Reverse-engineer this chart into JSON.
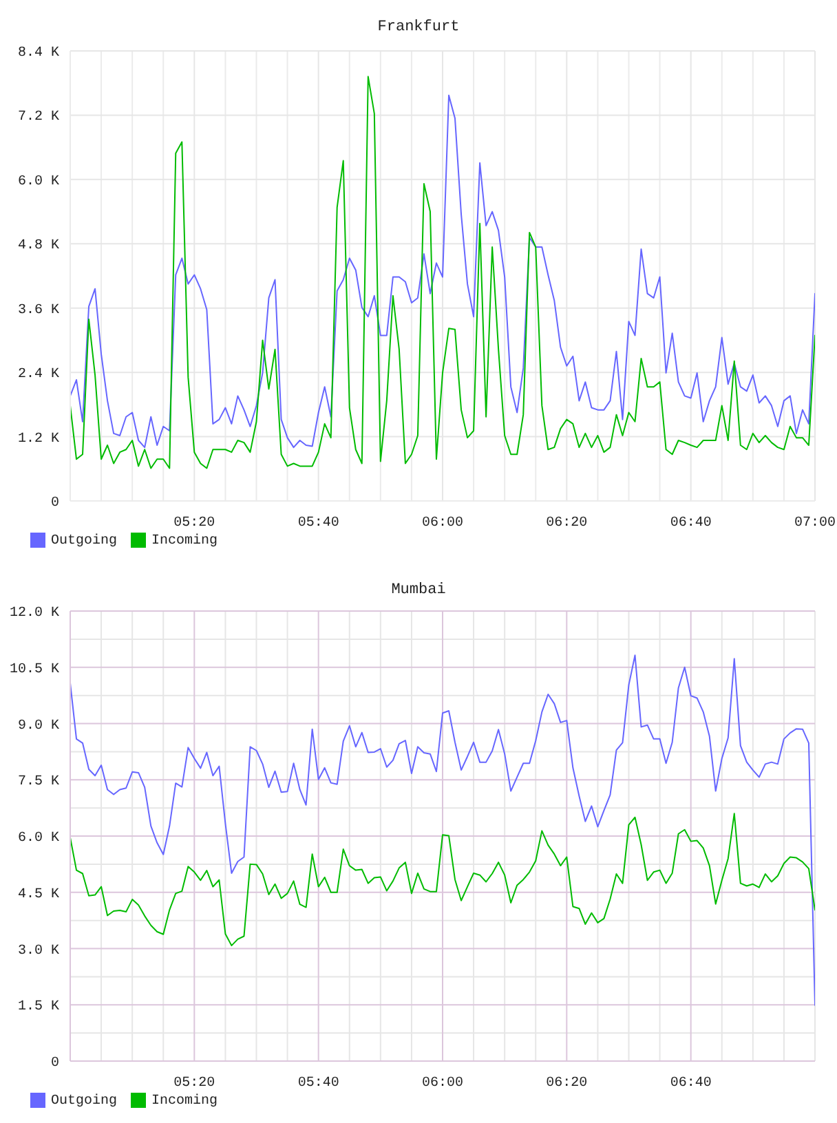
{
  "chart_data": [
    {
      "type": "line",
      "title": "Frankfurt",
      "x": [
        5,
        5.0167,
        5.0333,
        5.05,
        5.0667,
        5.0833,
        5.1,
        5.1167,
        5.1333,
        5.15,
        5.1667,
        5.1833,
        5.2,
        5.2167,
        5.2333,
        5.25,
        5.2667,
        5.2833,
        5.3,
        5.3167,
        5.3333,
        5.35,
        5.3667,
        5.3833,
        5.4,
        5.4167,
        5.4333,
        5.45,
        5.4667,
        5.4833,
        5.5,
        5.5167,
        5.5333,
        5.55,
        5.5667,
        5.5833,
        5.6,
        5.6167,
        5.6333,
        5.65,
        5.6667,
        5.6833,
        5.7,
        5.7167,
        5.7333,
        5.75,
        5.7667,
        5.7833,
        5.8,
        5.8167,
        5.8333,
        5.85,
        5.8667,
        5.8833,
        5.9,
        5.9167,
        5.9333,
        5.95,
        5.9667,
        5.9833,
        6,
        6.0167,
        6.0333,
        6.05,
        6.0667,
        6.0833,
        6.1,
        6.1167,
        6.1333,
        6.15,
        6.1667,
        6.1833,
        6.2,
        6.2167,
        6.2333,
        6.25,
        6.2667,
        6.2833,
        6.3,
        6.3167,
        6.3333,
        6.35,
        6.3667,
        6.3833,
        6.4,
        6.4167,
        6.4333,
        6.45,
        6.4667,
        6.4833,
        6.5,
        6.5167,
        6.5333,
        6.55,
        6.5667,
        6.5833,
        6.6,
        6.6167,
        6.6333,
        6.65,
        6.6667,
        6.6833,
        6.7,
        6.7167,
        6.7333,
        6.75,
        6.7667,
        6.7833,
        6.8,
        6.8167,
        6.8333,
        6.85,
        6.8667,
        6.8833,
        6.9,
        6.9167,
        6.9333,
        6.95,
        6.9667,
        6.9833,
        7
      ],
      "xlim": [
        5,
        7
      ],
      "xticks": [
        {
          "value": 5.0833,
          "label": null
        },
        {
          "value": 5.1667,
          "label": null
        },
        {
          "value": 5.25,
          "label": null
        },
        {
          "value": 5.3333,
          "label": "05:20"
        },
        {
          "value": 5.4167,
          "label": null
        },
        {
          "value": 5.5,
          "label": null
        },
        {
          "value": 5.5833,
          "label": null
        },
        {
          "value": 5.6667,
          "label": "05:40"
        },
        {
          "value": 5.75,
          "label": null
        },
        {
          "value": 5.8333,
          "label": null
        },
        {
          "value": 5.9167,
          "label": null
        },
        {
          "value": 6,
          "label": "06:00"
        },
        {
          "value": 6.0833,
          "label": null
        },
        {
          "value": 6.1667,
          "label": null
        },
        {
          "value": 6.25,
          "label": null
        },
        {
          "value": 6.3333,
          "label": "06:20"
        },
        {
          "value": 6.4167,
          "label": null
        },
        {
          "value": 6.5,
          "label": null
        },
        {
          "value": 6.5833,
          "label": null
        },
        {
          "value": 6.6667,
          "label": "06:40"
        },
        {
          "value": 6.75,
          "label": null
        },
        {
          "value": 6.8333,
          "label": null
        },
        {
          "value": 6.9167,
          "label": null
        },
        {
          "value": 7,
          "label": "07:00"
        }
      ],
      "ylim": [
        0,
        8.4
      ],
      "yticks": [
        0,
        {
          "value": 1.2,
          "label": "1.2 K"
        },
        {
          "value": 2.4,
          "label": "2.4 K"
        },
        {
          "value": 3.6,
          "label": "3.6 K"
        },
        {
          "value": 4.8,
          "label": "4.8 K"
        },
        {
          "value": 6,
          "label": "6.0 K"
        },
        {
          "value": 7.2,
          "label": "7.2 K"
        },
        {
          "value": 8.4,
          "label": "8.4 K"
        }
      ],
      "grid": true,
      "legend": "bottom left",
      "series": [
        {
          "name": "Outgoing",
          "color": "#6666ff",
          "values": [
            1.96,
            2.26,
            1.48,
            3.63,
            3.96,
            2.74,
            1.87,
            1.26,
            1.22,
            1.57,
            1.65,
            1.13,
            1.0,
            1.57,
            1.04,
            1.39,
            1.31,
            4.22,
            4.53,
            4.05,
            4.22,
            3.96,
            3.57,
            1.44,
            1.52,
            1.74,
            1.44,
            1.96,
            1.7,
            1.39,
            1.78,
            2.39,
            3.79,
            4.13,
            1.52,
            1.18,
            1.0,
            1.13,
            1.04,
            1.02,
            1.65,
            2.13,
            1.57,
            3.92,
            4.13,
            4.53,
            4.31,
            3.61,
            3.44,
            3.83,
            3.09,
            3.09,
            4.18,
            4.18,
            4.09,
            3.7,
            3.79,
            4.61,
            3.87,
            4.44,
            4.18,
            7.57,
            7.14,
            5.35,
            4.05,
            3.44,
            6.31,
            5.14,
            5.4,
            5.05,
            4.18,
            2.13,
            1.65,
            2.48,
            4.92,
            4.74,
            4.74,
            4.22,
            3.74,
            2.87,
            2.52,
            2.7,
            1.87,
            2.22,
            1.74,
            1.7,
            1.7,
            1.87,
            2.79,
            1.52,
            3.35,
            3.09,
            4.7,
            3.87,
            3.79,
            4.18,
            2.39,
            3.13,
            2.22,
            1.96,
            1.92,
            2.39,
            1.48,
            1.87,
            2.13,
            3.05,
            2.18,
            2.57,
            2.13,
            2.05,
            2.35,
            1.83,
            1.96,
            1.78,
            1.39,
            1.87,
            1.96,
            1.26,
            1.7,
            1.44,
            3.87
          ]
        },
        {
          "name": "Incoming",
          "color": "#00bb00",
          "values": [
            1.78,
            0.78,
            0.87,
            3.39,
            2.35,
            0.78,
            1.04,
            0.7,
            0.91,
            0.96,
            1.13,
            0.65,
            0.96,
            0.61,
            0.78,
            0.78,
            0.61,
            6.49,
            6.7,
            2.31,
            0.91,
            0.7,
            0.61,
            0.96,
            0.96,
            0.96,
            0.91,
            1.13,
            1.09,
            0.91,
            1.48,
            3.0,
            2.09,
            2.83,
            0.87,
            0.65,
            0.7,
            0.65,
            0.65,
            0.65,
            0.91,
            1.44,
            1.18,
            5.48,
            6.35,
            1.74,
            0.96,
            0.7,
            7.92,
            7.23,
            0.74,
            1.87,
            3.83,
            2.83,
            0.7,
            0.87,
            1.22,
            5.92,
            5.4,
            0.78,
            2.39,
            3.22,
            3.2,
            1.7,
            1.18,
            1.31,
            5.18,
            1.57,
            4.74,
            2.83,
            1.22,
            0.87,
            0.87,
            1.61,
            5.01,
            4.74,
            1.78,
            0.96,
            1.0,
            1.35,
            1.52,
            1.44,
            1.0,
            1.26,
            1.0,
            1.22,
            0.91,
            1.0,
            1.61,
            1.22,
            1.65,
            1.48,
            2.66,
            2.13,
            2.13,
            2.22,
            0.96,
            0.87,
            1.13,
            1.09,
            1.04,
            1.0,
            1.13,
            1.13,
            1.13,
            1.78,
            1.13,
            2.61,
            1.04,
            0.96,
            1.26,
            1.09,
            1.22,
            1.09,
            1.0,
            0.96,
            1.39,
            1.18,
            1.18,
            1.04,
            3.09
          ]
        }
      ]
    },
    {
      "type": "line",
      "title": "Mumbai",
      "x": [
        5,
        5.0167,
        5.0333,
        5.05,
        5.0667,
        5.0833,
        5.1,
        5.1167,
        5.1333,
        5.15,
        5.1667,
        5.1833,
        5.2,
        5.2167,
        5.2333,
        5.25,
        5.2667,
        5.2833,
        5.3,
        5.3167,
        5.3333,
        5.35,
        5.3667,
        5.3833,
        5.4,
        5.4167,
        5.4333,
        5.45,
        5.4667,
        5.4833,
        5.5,
        5.5167,
        5.5333,
        5.55,
        5.5667,
        5.5833,
        5.6,
        5.6167,
        5.6333,
        5.65,
        5.6667,
        5.6833,
        5.7,
        5.7167,
        5.7333,
        5.75,
        5.7667,
        5.7833,
        5.8,
        5.8167,
        5.8333,
        5.85,
        5.8667,
        5.8833,
        5.9,
        5.9167,
        5.9333,
        5.95,
        5.9667,
        5.9833,
        6,
        6.0167,
        6.0333,
        6.05,
        6.0667,
        6.0833,
        6.1,
        6.1167,
        6.1333,
        6.15,
        6.1667,
        6.1833,
        6.2,
        6.2167,
        6.2333,
        6.25,
        6.2667,
        6.2833,
        6.3,
        6.3167,
        6.3333,
        6.35,
        6.3667,
        6.3833,
        6.4,
        6.4167,
        6.4333,
        6.45,
        6.4667,
        6.4833,
        6.5,
        6.5167,
        6.5333,
        6.55,
        6.5667,
        6.5833,
        6.6,
        6.6167,
        6.6333,
        6.65,
        6.6667,
        6.6833,
        6.7,
        6.7167,
        6.7333,
        6.75,
        6.7667,
        6.7833,
        6.8,
        6.8167,
        6.8333,
        6.85,
        6.8667,
        6.8833,
        6.9,
        6.9167,
        6.9333,
        6.95,
        6.9667,
        6.9833,
        7
      ],
      "xlim": [
        5,
        7
      ],
      "xticks": [
        {
          "value": 5.0833,
          "label": null
        },
        {
          "value": 5.1667,
          "label": null
        },
        {
          "value": 5.25,
          "label": null
        },
        {
          "value": 5.3333,
          "label": "05:20"
        },
        {
          "value": 5.4167,
          "label": null
        },
        {
          "value": 5.5,
          "label": null
        },
        {
          "value": 5.5833,
          "label": null
        },
        {
          "value": 5.6667,
          "label": "05:40"
        },
        {
          "value": 5.75,
          "label": null
        },
        {
          "value": 5.8333,
          "label": null
        },
        {
          "value": 5.9167,
          "label": null
        },
        {
          "value": 6,
          "label": "06:00"
        },
        {
          "value": 6.0833,
          "label": null
        },
        {
          "value": 6.1667,
          "label": null
        },
        {
          "value": 6.25,
          "label": null
        },
        {
          "value": 6.3333,
          "label": "06:20"
        },
        {
          "value": 6.4167,
          "label": null
        },
        {
          "value": 6.5,
          "label": null
        },
        {
          "value": 6.5833,
          "label": null
        },
        {
          "value": 6.6667,
          "label": "06:40"
        },
        {
          "value": 6.75,
          "label": null
        },
        {
          "value": 6.8333,
          "label": null
        },
        {
          "value": 6.9167,
          "label": null
        },
        {
          "value": 7,
          "label": null
        }
      ],
      "ylim": [
        0,
        12
      ],
      "yticks": [
        0,
        {
          "value": 0.75,
          "label": null
        },
        {
          "value": 1.5,
          "label": "1.5 K"
        },
        {
          "value": 2.25,
          "label": null
        },
        {
          "value": 3,
          "label": "3.0 K"
        },
        {
          "value": 3.75,
          "label": null
        },
        {
          "value": 4.5,
          "label": "4.5 K"
        },
        {
          "value": 5.25,
          "label": null
        },
        {
          "value": 6,
          "label": "6.0 K"
        },
        {
          "value": 6.75,
          "label": null
        },
        {
          "value": 7.5,
          "label": "7.5 K"
        },
        {
          "value": 8.25,
          "label": null
        },
        {
          "value": 9,
          "label": "9.0 K"
        },
        {
          "value": 9.75,
          "label": null
        },
        {
          "value": 10.5,
          "label": "10.5 K"
        },
        {
          "value": 11.25,
          "label": null
        },
        {
          "value": 12,
          "label": "12.0 K"
        }
      ],
      "grid": true,
      "legend": "bottom left",
      "series": [
        {
          "name": "Outgoing",
          "color": "#6666ff",
          "values": [
            10.08,
            8.59,
            8.48,
            7.78,
            7.61,
            7.89,
            7.24,
            7.11,
            7.24,
            7.28,
            7.71,
            7.69,
            7.3,
            6.27,
            5.82,
            5.51,
            6.27,
            7.41,
            7.31,
            8.36,
            8.07,
            7.81,
            8.23,
            7.61,
            7.86,
            6.33,
            5.01,
            5.32,
            5.44,
            8.38,
            8.28,
            7.92,
            7.3,
            7.73,
            7.17,
            7.19,
            7.94,
            7.24,
            6.83,
            8.85,
            7.51,
            7.82,
            7.42,
            7.38,
            8.53,
            8.94,
            8.38,
            8.76,
            8.23,
            8.24,
            8.33,
            7.84,
            8.02,
            8.46,
            8.55,
            7.67,
            8.38,
            8.22,
            8.19,
            7.72,
            9.28,
            9.34,
            8.5,
            7.76,
            8.12,
            8.5,
            7.97,
            7.97,
            8.27,
            8.84,
            8.19,
            7.2,
            7.57,
            7.94,
            7.94,
            8.54,
            9.31,
            9.78,
            9.53,
            9.03,
            9.08,
            7.82,
            7.07,
            6.39,
            6.8,
            6.25,
            6.68,
            7.1,
            8.29,
            8.49,
            10.03,
            10.82,
            8.91,
            8.96,
            8.59,
            8.59,
            7.94,
            8.5,
            9.95,
            10.5,
            9.74,
            9.68,
            9.31,
            8.66,
            7.2,
            8.07,
            8.62,
            10.73,
            8.41,
            7.97,
            7.76,
            7.57,
            7.92,
            7.97,
            7.92,
            8.59,
            8.75,
            8.86,
            8.85,
            8.48,
            1.49
          ]
        },
        {
          "name": "Incoming",
          "color": "#00bb00",
          "values": [
            5.96,
            5.09,
            5.0,
            4.41,
            4.43,
            4.65,
            3.88,
            4.0,
            4.02,
            3.98,
            4.31,
            4.16,
            3.87,
            3.62,
            3.45,
            3.38,
            4.03,
            4.47,
            4.53,
            5.19,
            5.04,
            4.82,
            5.08,
            4.65,
            4.83,
            3.39,
            3.08,
            3.25,
            3.33,
            5.25,
            5.24,
            4.99,
            4.44,
            4.72,
            4.34,
            4.47,
            4.8,
            4.18,
            4.1,
            5.52,
            4.65,
            4.9,
            4.5,
            4.5,
            5.65,
            5.21,
            5.09,
            5.11,
            4.74,
            4.89,
            4.91,
            4.54,
            4.8,
            5.15,
            5.3,
            4.47,
            5.01,
            4.59,
            4.52,
            4.52,
            6.03,
            6.01,
            4.84,
            4.28,
            4.65,
            5.01,
            4.96,
            4.78,
            5.0,
            5.3,
            4.96,
            4.22,
            4.69,
            4.84,
            5.04,
            5.34,
            6.14,
            5.76,
            5.52,
            5.21,
            5.44,
            4.12,
            4.07,
            3.65,
            3.95,
            3.69,
            3.8,
            4.32,
            4.99,
            4.74,
            6.3,
            6.5,
            5.77,
            4.82,
            5.04,
            5.09,
            4.74,
            5.01,
            6.06,
            6.17,
            5.86,
            5.88,
            5.68,
            5.21,
            4.19,
            4.82,
            5.4,
            6.6,
            4.74,
            4.67,
            4.72,
            4.63,
            4.99,
            4.78,
            4.94,
            5.27,
            5.44,
            5.42,
            5.31,
            5.13,
            4.03
          ]
        }
      ]
    }
  ]
}
